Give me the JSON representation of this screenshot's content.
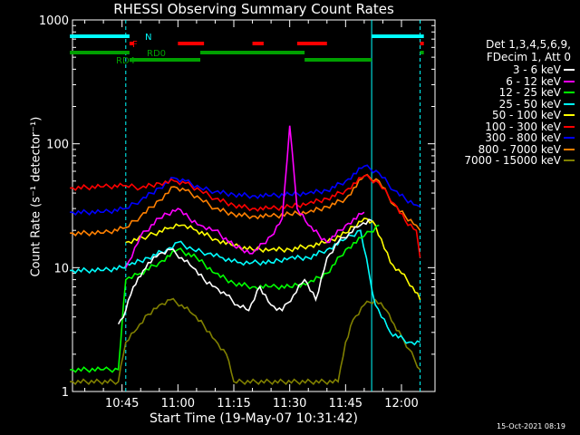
{
  "chart_data": {
    "type": "line",
    "title": "RHESSI Observing Summary Count Rates",
    "xlabel": "Start Time (19-May-07 10:31:42)",
    "ylabel": "Count Rate (s⁻¹ detector⁻¹)",
    "y_scale": "log",
    "ylim": [
      1,
      1000
    ],
    "xlim_minutes": [
      10.3,
      12.16
    ],
    "x_ticks": [
      "10:45",
      "11:00",
      "11:15",
      "11:30",
      "11:45",
      "12:00"
    ],
    "y_ticks": [
      "1",
      "10",
      "100",
      "1000"
    ],
    "legend_header": [
      "Det 1,3,4,5,6,9,",
      "FDecim 1, Att 0"
    ],
    "series": [
      {
        "name": "3 - 6 keV",
        "color": "#ffffff",
        "x": [
          "10:44",
          "10:46",
          "10:48",
          "10:50",
          "10:52",
          "10:55",
          "10:58",
          "11:01",
          "11:04",
          "11:07",
          "11:10",
          "11:13",
          "11:16",
          "11:19",
          "11:22",
          "11:25",
          "11:28",
          "11:31",
          "11:34",
          "11:37",
          "11:40",
          "11:43",
          "11:46",
          "11:49",
          "11:52"
        ],
        "values": [
          3.5,
          4.5,
          7,
          8.5,
          11,
          13,
          14,
          12,
          10,
          8,
          7,
          6,
          5,
          4.5,
          7,
          5,
          4.5,
          6,
          8,
          5.5,
          12,
          16,
          19,
          22,
          24
        ]
      },
      {
        "name": "6 - 12 keV",
        "color": "#ff00ff",
        "x": [
          "10:46",
          "10:50",
          "10:55",
          "11:00",
          "11:03",
          "11:06",
          "11:10",
          "11:15",
          "11:20",
          "11:25",
          "11:28",
          "11:30",
          "11:32",
          "11:35",
          "11:40",
          "11:45",
          "11:50"
        ],
        "values": [
          10,
          18,
          25,
          30,
          25,
          22,
          20,
          15,
          13,
          18,
          25,
          140,
          30,
          22,
          16,
          22,
          28
        ]
      },
      {
        "name": "12 - 25 keV",
        "color": "#00ff00",
        "x": [
          "10:31",
          "10:40",
          "10:44",
          "10:46",
          "10:50",
          "10:55",
          "11:00",
          "11:05",
          "11:10",
          "11:15",
          "11:20",
          "11:25",
          "11:30",
          "11:35",
          "11:40",
          "11:45",
          "11:50",
          "11:54"
        ],
        "values": [
          1.5,
          1.5,
          1.5,
          8,
          9,
          11,
          14,
          12,
          9,
          7.5,
          7,
          7,
          7,
          7.5,
          9,
          14,
          18,
          22
        ]
      },
      {
        "name": "25 - 50 keV",
        "color": "#00ffff",
        "x": [
          "10:31",
          "10:40",
          "10:45",
          "10:47",
          "10:52",
          "10:57",
          "11:00",
          "11:04",
          "11:08",
          "11:12",
          "11:16",
          "11:20",
          "11:25",
          "11:30",
          "11:35",
          "11:40",
          "11:45",
          "11:49",
          "11:53",
          "11:57",
          "12:02",
          "12:05"
        ],
        "values": [
          9.5,
          9.5,
          10,
          10.5,
          12,
          14,
          16,
          14,
          13,
          12,
          11,
          11,
          11,
          12,
          12,
          14,
          17,
          20,
          5,
          3,
          2.5,
          2.5
        ]
      },
      {
        "name": "50 - 100 keV",
        "color": "#ffff00",
        "x": [
          "10:46",
          "10:52",
          "10:58",
          "11:01",
          "11:05",
          "11:10",
          "11:15",
          "11:20",
          "11:25",
          "11:30",
          "11:35",
          "11:40",
          "11:45",
          "11:50",
          "11:53",
          "11:57",
          "12:00",
          "12:03",
          "12:05"
        ],
        "values": [
          16,
          18,
          21,
          22,
          20,
          17,
          15,
          14,
          14,
          14,
          15,
          16,
          19,
          25,
          22,
          11,
          9,
          7,
          5.5
        ]
      },
      {
        "name": "100 - 300 keV",
        "color": "#ff0000",
        "x": [
          "10:31",
          "10:40",
          "10:46",
          "10:50",
          "10:55",
          "10:59",
          "11:02",
          "11:06",
          "11:10",
          "11:15",
          "11:20",
          "11:25",
          "11:30",
          "11:35",
          "11:40",
          "11:45",
          "11:50",
          "11:54",
          "11:58",
          "12:01",
          "12:04",
          "12:05"
        ],
        "values": [
          44,
          45,
          46,
          44,
          48,
          50,
          48,
          42,
          36,
          32,
          30,
          30,
          31,
          33,
          36,
          42,
          55,
          48,
          33,
          24,
          20,
          12
        ]
      },
      {
        "name": "300 - 800 keV",
        "color": "#0000ff",
        "x": [
          "10:31",
          "10:40",
          "10:46",
          "10:50",
          "10:55",
          "10:59",
          "11:02",
          "11:06",
          "11:10",
          "11:15",
          "11:20",
          "11:25",
          "11:30",
          "11:35",
          "11:40",
          "11:45",
          "11:50",
          "11:54",
          "11:58",
          "12:01",
          "12:04",
          "12:05"
        ],
        "values": [
          28,
          28,
          30,
          35,
          44,
          53,
          50,
          44,
          41,
          39,
          38,
          38,
          39,
          40,
          42,
          50,
          66,
          58,
          42,
          36,
          32,
          31
        ]
      },
      {
        "name": "800 - 7000 keV",
        "color": "#ff8000",
        "x": [
          "10:31",
          "10:40",
          "10:46",
          "10:50",
          "10:55",
          "10:59",
          "11:02",
          "11:06",
          "11:10",
          "11:15",
          "11:20",
          "11:25",
          "11:30",
          "11:35",
          "11:40",
          "11:45",
          "11:50",
          "11:54",
          "11:58",
          "12:01",
          "12:04",
          "12:05"
        ],
        "values": [
          19,
          19,
          21,
          26,
          35,
          45,
          42,
          36,
          30,
          27,
          26,
          26,
          27,
          28,
          31,
          36,
          55,
          50,
          32,
          26,
          22,
          20
        ]
      },
      {
        "name": "7000 - 15000 keV",
        "color": "#808000",
        "x": [
          "10:31",
          "10:44",
          "10:46",
          "10:49",
          "10:52",
          "10:55",
          "10:58",
          "11:01",
          "11:04",
          "11:07",
          "11:10",
          "11:13",
          "11:15",
          "11:43",
          "11:45",
          "11:47",
          "11:50",
          "11:53",
          "11:56",
          "11:58",
          "12:00",
          "12:02",
          "12:05"
        ],
        "values": [
          1.2,
          1.2,
          2.5,
          3.2,
          4.2,
          5.0,
          5.5,
          5.0,
          4.2,
          3.4,
          2.6,
          2.0,
          1.2,
          1.2,
          2.5,
          3.8,
          5.0,
          5.5,
          4.5,
          3.5,
          2.8,
          2.2,
          1.5
        ]
      }
    ],
    "flag_bars": [
      {
        "label": "N",
        "color": "#00ffff",
        "segments": [
          [
            "10:31",
            "10:47"
          ],
          [
            "11:52",
            "12:06"
          ]
        ]
      },
      {
        "label": "F",
        "color": "#ff0000",
        "segments": [
          [
            "10:47",
            "10:48"
          ],
          [
            "11:00",
            "11:07"
          ],
          [
            "11:20",
            "11:23"
          ],
          [
            "11:32",
            "11:40"
          ],
          [
            "12:05",
            "12:06"
          ]
        ]
      },
      {
        "label": "RD0",
        "color": "#00a000",
        "segments": [
          [
            "10:31",
            "10:47"
          ],
          [
            "11:06",
            "11:34"
          ],
          [
            "12:05",
            "12:06"
          ]
        ]
      },
      {
        "label": "RD4",
        "color": "#00a000",
        "segments": [
          [
            "10:47",
            "11:06"
          ],
          [
            "11:34",
            "11:52"
          ]
        ]
      }
    ],
    "vertical_markers": [
      {
        "time": "10:46",
        "style": "dashed",
        "color": "#00ffff"
      },
      {
        "time": "11:52",
        "style": "solid",
        "color": "#00ffff"
      },
      {
        "time": "12:05",
        "style": "dashed",
        "color": "#00ffff"
      }
    ]
  },
  "timestamp": "15-Oct-2021 08:19"
}
